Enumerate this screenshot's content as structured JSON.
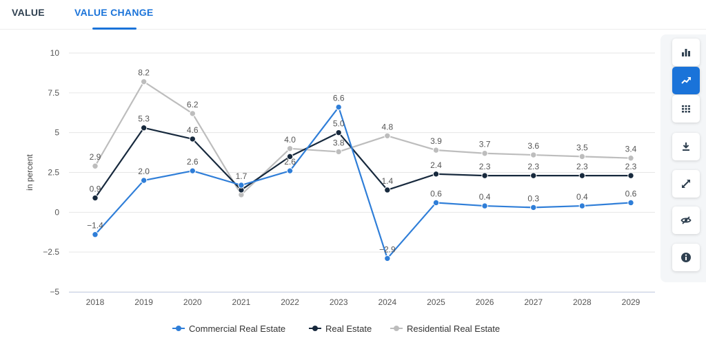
{
  "tabs": [
    {
      "label": "VALUE"
    },
    {
      "label": "VALUE CHANGE"
    }
  ],
  "toolbar": {
    "items": [
      {
        "icon": "bar-chart-icon",
        "active": false
      },
      {
        "icon": "trend-line-icon",
        "active": true
      },
      {
        "icon": "table-grid-icon",
        "active": false
      },
      {
        "icon": "download-icon",
        "active": false
      },
      {
        "icon": "fullscreen-icon",
        "active": false
      },
      {
        "icon": "hide-eye-icon",
        "active": false
      },
      {
        "icon": "info-icon",
        "active": false
      }
    ]
  },
  "chart_data": {
    "type": "line",
    "ylabel": "in percent",
    "ylim": [
      -5,
      10
    ],
    "yticks": [
      {
        "value": 10,
        "label": "10"
      },
      {
        "value": 7.5,
        "label": "7.5"
      },
      {
        "value": 5,
        "label": "5"
      },
      {
        "value": 2.5,
        "label": "2.5"
      },
      {
        "value": 0,
        "label": "0"
      },
      {
        "value": -2.5,
        "label": "−2.5"
      },
      {
        "value": -5,
        "label": "−5"
      }
    ],
    "categories": [
      "2018",
      "2019",
      "2020",
      "2021",
      "2022",
      "2023",
      "2024",
      "2025",
      "2026",
      "2027",
      "2028",
      "2029"
    ],
    "grid": true,
    "legend_position": "bottom",
    "series": [
      {
        "name": "Commercial Real Estate",
        "color": "#2f7ed8",
        "values": [
          -1.4,
          2.0,
          2.6,
          1.7,
          2.6,
          6.6,
          -2.9,
          0.6,
          0.4,
          0.3,
          0.4,
          0.6
        ],
        "labels": [
          "−1.4",
          "2.0",
          "2.6",
          "1.7",
          "2.6",
          "6.6",
          "−2.9",
          "0.6",
          "0.4",
          "0.3",
          "0.4",
          "0.6"
        ]
      },
      {
        "name": "Real Estate",
        "color": "#17293d",
        "values": [
          0.9,
          5.3,
          4.6,
          1.4,
          3.5,
          5.0,
          1.4,
          2.4,
          2.3,
          2.3,
          2.3,
          2.3
        ],
        "labels": [
          "0.9",
          "5.3",
          "4.6",
          "",
          "",
          "5.0",
          "1.4",
          "2.4",
          "2.3",
          "2.3",
          "2.3",
          "2.3"
        ]
      },
      {
        "name": "Residential Real Estate",
        "color": "#bdbdbd",
        "values": [
          2.9,
          8.2,
          6.2,
          1.1,
          4.0,
          3.8,
          4.8,
          3.9,
          3.7,
          3.6,
          3.5,
          3.4
        ],
        "labels": [
          "2.9",
          "8.2",
          "6.2",
          "",
          "4.0",
          "3.8",
          "4.8",
          "3.9",
          "3.7",
          "3.6",
          "3.5",
          "3.4"
        ]
      }
    ]
  }
}
